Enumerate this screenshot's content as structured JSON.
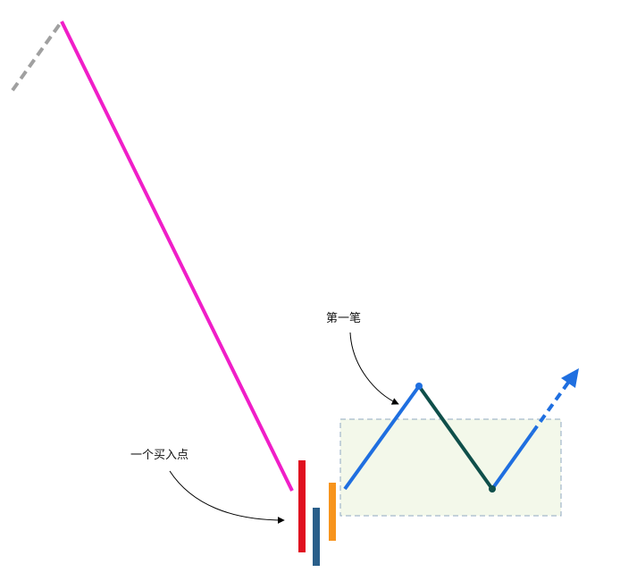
{
  "labels": {
    "first_stroke": "第一笔",
    "buy_point": "一个买入点"
  },
  "colors": {
    "down_stroke": "#f01ec8",
    "dashed_prior": "#a0a0a0",
    "up_stroke": "#1f6fe0",
    "down_stroke_2": "#0f4f4a",
    "bar_red": "#e01020",
    "bar_blue": "#2a5f8a",
    "bar_orange": "#f7941d",
    "zone_fill": "#f3f8ea",
    "zone_border": "#8fa8c0",
    "arrow": "#000000"
  }
}
